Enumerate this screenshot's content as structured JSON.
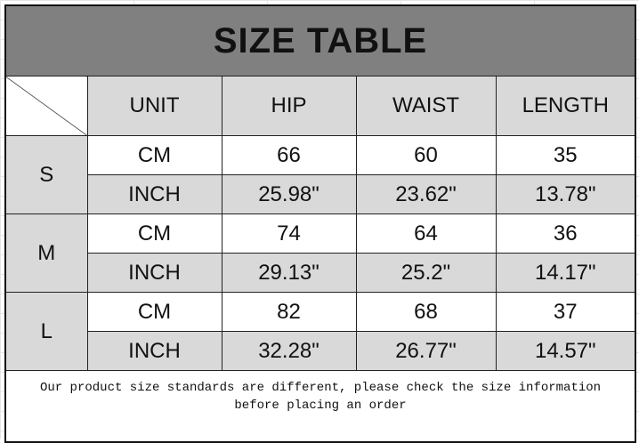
{
  "title": "SIZE TABLE",
  "headers": [
    "UNIT",
    "HIP",
    "WAIST",
    "LENGTH"
  ],
  "rows": [
    {
      "size": "S",
      "cm": {
        "unit": "CM",
        "hip": "66",
        "waist": "60",
        "length": "35"
      },
      "inch": {
        "unit": "INCH",
        "hip": "25.98\"",
        "waist": "23.62\"",
        "length": "13.78\""
      }
    },
    {
      "size": "M",
      "cm": {
        "unit": "CM",
        "hip": "74",
        "waist": "64",
        "length": "36"
      },
      "inch": {
        "unit": "INCH",
        "hip": "29.13\"",
        "waist": "25.2\"",
        "length": "14.17\""
      }
    },
    {
      "size": "L",
      "cm": {
        "unit": "CM",
        "hip": "82",
        "waist": "68",
        "length": "37"
      },
      "inch": {
        "unit": "INCH",
        "hip": "32.28\"",
        "waist": "26.77\"",
        "length": "14.57\""
      }
    }
  ],
  "note_line1": "Our product size standards are different, please check the size information",
  "note_line2": "before placing an order"
}
